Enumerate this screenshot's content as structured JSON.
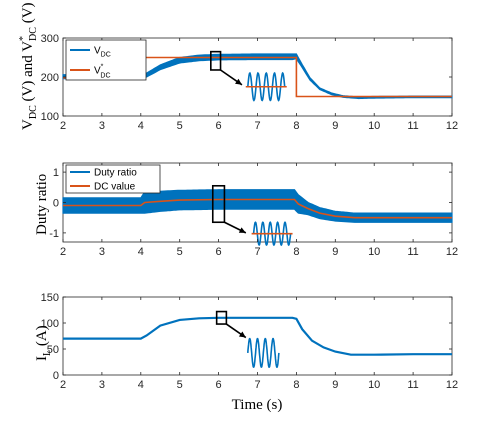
{
  "colors": {
    "blue": "#0072BD",
    "orange": "#D95319",
    "axis": "#262626"
  },
  "xlabel": "Time (s)",
  "chart_data": [
    {
      "type": "line",
      "xlim": [
        2,
        12
      ],
      "ylim": [
        100,
        300
      ],
      "xticks": [
        2,
        3,
        4,
        5,
        6,
        7,
        8,
        9,
        10,
        11,
        12
      ],
      "yticks": [
        100,
        200,
        300
      ],
      "ylabel_parts": {
        "a": "V",
        "a_sub": "DC",
        "b": " (V) and V",
        "b_sup": "*",
        "b_sub": "DC",
        "c": " (V)"
      },
      "legend": {
        "placement": "top-left",
        "entries": [
          {
            "main": "V",
            "sub": "DC",
            "sup": ""
          },
          {
            "main": "V",
            "sub": "DC",
            "sup": "*"
          }
        ]
      },
      "series": [
        {
          "name": "V_DC",
          "style": "band",
          "color": "blue",
          "x": [
            2,
            4,
            4.15,
            4.5,
            5,
            5.5,
            6,
            7,
            7.9,
            8.0,
            8.15,
            8.35,
            8.6,
            8.9,
            9.2,
            9.6,
            10,
            11,
            12
          ],
          "y": [
            201,
            201,
            205,
            225,
            243,
            249,
            251,
            252,
            252,
            253,
            228,
            195,
            170,
            157,
            150,
            147,
            148,
            149,
            149
          ],
          "amp": [
            5,
            5,
            5,
            6,
            7,
            7,
            7,
            7,
            7,
            6,
            4,
            3,
            2,
            2,
            2,
            2,
            2,
            2,
            2
          ]
        },
        {
          "name": "V*_DC",
          "style": "line",
          "color": "orange",
          "x": [
            2,
            4,
            4,
            8,
            8,
            12
          ],
          "y": [
            198,
            198,
            250,
            250,
            150,
            150
          ]
        }
      ],
      "zoom": {
        "rect_x": [
          5.8,
          6.05
        ],
        "rect_y": [
          218,
          265
        ],
        "arrow_to_x": 6.6,
        "arrow_to_y": 180,
        "inset_x": [
          6.75,
          7.7
        ],
        "inset_y": [
          140,
          210
        ],
        "cycles": 4.5,
        "dc_line_color": "orange"
      }
    },
    {
      "type": "line",
      "xlim": [
        2,
        12
      ],
      "ylim": [
        -1.3,
        1.3
      ],
      "xticks": [
        2,
        3,
        4,
        5,
        6,
        7,
        8,
        9,
        10,
        11,
        12
      ],
      "yticks": [
        -1,
        0,
        1
      ],
      "ylabel": "Duty ratio",
      "legend": {
        "placement": "top-left",
        "entries": [
          {
            "main": "Duty ratio",
            "sub": "",
            "sup": ""
          },
          {
            "main": "DC value",
            "sub": "",
            "sup": ""
          }
        ]
      },
      "series": [
        {
          "name": "Duty ratio",
          "style": "band",
          "color": "blue",
          "x": [
            2,
            4,
            4.1,
            4.5,
            5,
            6,
            7.95,
            8.05,
            8.3,
            8.6,
            9.0,
            9.5,
            10,
            12
          ],
          "y": [
            -0.1,
            -0.1,
            0.0,
            0.04,
            0.08,
            0.1,
            0.1,
            -0.05,
            -0.2,
            -0.35,
            -0.45,
            -0.5,
            -0.5,
            -0.5
          ],
          "amp": [
            0.25,
            0.25,
            0.35,
            0.33,
            0.32,
            0.32,
            0.32,
            0.3,
            0.2,
            0.18,
            0.16,
            0.15,
            0.15,
            0.15
          ]
        },
        {
          "name": "DC value",
          "style": "line",
          "color": "orange",
          "x": [
            2,
            4,
            4.1,
            4.5,
            5,
            6,
            7.95,
            8.05,
            8.3,
            8.6,
            9.0,
            9.5,
            10,
            12
          ],
          "y": [
            -0.1,
            -0.1,
            0.0,
            0.04,
            0.08,
            0.1,
            0.1,
            -0.05,
            -0.2,
            -0.35,
            -0.45,
            -0.5,
            -0.5,
            -0.5
          ]
        }
      ],
      "zoom": {
        "rect_x": [
          5.85,
          6.15
        ],
        "rect_y": [
          -0.65,
          0.55
        ],
        "arrow_to_x": 6.7,
        "arrow_to_y": -1.0,
        "inset_x": [
          6.9,
          7.85
        ],
        "inset_y": [
          -1.4,
          -0.65
        ],
        "cycles": 5,
        "dc_line_color": "orange"
      }
    },
    {
      "type": "line",
      "xlim": [
        2,
        12
      ],
      "ylim": [
        0,
        150
      ],
      "xticks": [
        2,
        3,
        4,
        5,
        6,
        7,
        8,
        9,
        10,
        11,
        12
      ],
      "yticks": [
        0,
        50,
        100,
        150
      ],
      "ylabel_parts": {
        "a": "I",
        "a_sub": "L",
        "c": " (A)"
      },
      "series": [
        {
          "name": "",
          "style": "line",
          "color": "blue",
          "x": [
            2,
            4,
            4.15,
            4.5,
            5,
            5.5,
            6,
            7,
            7.9,
            8.0,
            8.15,
            8.4,
            8.7,
            9.0,
            9.4,
            10,
            11,
            12
          ],
          "y": [
            70,
            70,
            76,
            95,
            106,
            109,
            110,
            110,
            110,
            108,
            88,
            66,
            53,
            45,
            39,
            39,
            40,
            40
          ]
        }
      ],
      "zoom": {
        "rect_x": [
          5.95,
          6.2
        ],
        "rect_y": [
          98,
          122
        ],
        "arrow_to_x": 6.7,
        "arrow_to_y": 72,
        "inset_x": [
          6.75,
          7.55
        ],
        "inset_y": [
          15,
          70
        ],
        "cycles": 4,
        "dc_line_color": ""
      }
    }
  ]
}
